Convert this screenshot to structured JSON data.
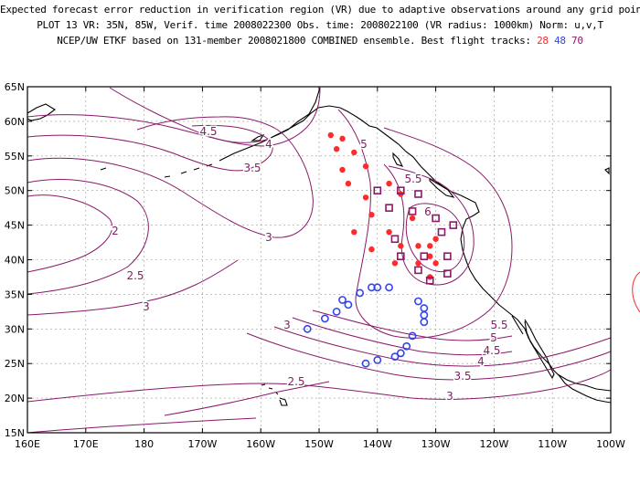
{
  "header": {
    "line1": "Expected forecast error reduction in verification region (VR) due to adaptive observations around any grid point.",
    "line2": "PLOT 13 VR: 35N, 85W, Verif. time 2008022300 Obs. time: 2008022100 (VR radius: 1000km) Norm: u,v,T",
    "line3_prefix": "NCEP/UW ETKF based on 131-member 2008021800 COMBINED ensemble.  Best flight tracks:",
    "track_a": "28",
    "track_b": "48",
    "track_c": "70"
  },
  "axes": {
    "lat_labels": [
      "65N",
      "60N",
      "55N",
      "50N",
      "45N",
      "40N",
      "35N",
      "30N",
      "25N",
      "20N",
      "15N"
    ],
    "lon_labels": [
      "160E",
      "170E",
      "180",
      "170W",
      "160W",
      "150W",
      "140W",
      "130W",
      "120W",
      "110W",
      "100W"
    ]
  },
  "contour_labels": [
    "4.5",
    "4",
    "3.5",
    "5",
    "5.5",
    "6",
    "2",
    "3",
    "2.5",
    "3",
    "5.5",
    "5",
    "4.5",
    "4",
    "3.5",
    "3",
    "2.5",
    "3"
  ],
  "colors": {
    "contour": "#8a1a6a",
    "track_red": "#ff2a2a",
    "track_blue": "#3344ee",
    "track_purple": "#8a1a6a"
  },
  "tracks": {
    "red": [
      [
        -148,
        58
      ],
      [
        -146,
        57.5
      ],
      [
        -147,
        56
      ],
      [
        -144,
        55.5
      ],
      [
        -146,
        53
      ],
      [
        -142,
        53.5
      ],
      [
        -145,
        51
      ],
      [
        -138,
        51
      ],
      [
        -142,
        49
      ],
      [
        -136,
        49.5
      ],
      [
        -141,
        46.5
      ],
      [
        -134,
        46
      ],
      [
        -144,
        44
      ],
      [
        -138,
        44
      ],
      [
        -141,
        41.5
      ],
      [
        -136,
        42
      ],
      [
        -133,
        42
      ],
      [
        -131,
        42
      ],
      [
        -130,
        43
      ],
      [
        -131,
        40.5
      ],
      [
        -137,
        39.5
      ],
      [
        -133,
        39.5
      ],
      [
        -130,
        39.5
      ],
      [
        -131,
        37.5
      ]
    ],
    "blue": [
      [
        -141,
        36
      ],
      [
        -140,
        36
      ],
      [
        -138,
        36
      ],
      [
        -143,
        35.2
      ],
      [
        -146,
        34.2
      ],
      [
        -145,
        33.5
      ],
      [
        -147,
        32.5
      ],
      [
        -149,
        31.5
      ],
      [
        -152,
        30
      ],
      [
        -133,
        34
      ],
      [
        -132,
        33
      ],
      [
        -132,
        32
      ],
      [
        -132,
        31
      ],
      [
        -134,
        29
      ],
      [
        -135,
        27.5
      ],
      [
        -136,
        26.5
      ],
      [
        -137,
        26
      ],
      [
        -140,
        25.5
      ],
      [
        -142,
        25
      ]
    ],
    "purple": [
      [
        -140,
        50
      ],
      [
        -136,
        50
      ],
      [
        -133,
        49.5
      ],
      [
        -138,
        47.5
      ],
      [
        -134,
        47
      ],
      [
        -130,
        46
      ],
      [
        -127,
        45
      ],
      [
        -129,
        44
      ],
      [
        -137,
        43
      ],
      [
        -136,
        40.5
      ],
      [
        -132,
        40.5
      ],
      [
        -128,
        40.5
      ],
      [
        -133,
        38.5
      ],
      [
        -128,
        38
      ],
      [
        -131,
        37
      ]
    ]
  }
}
